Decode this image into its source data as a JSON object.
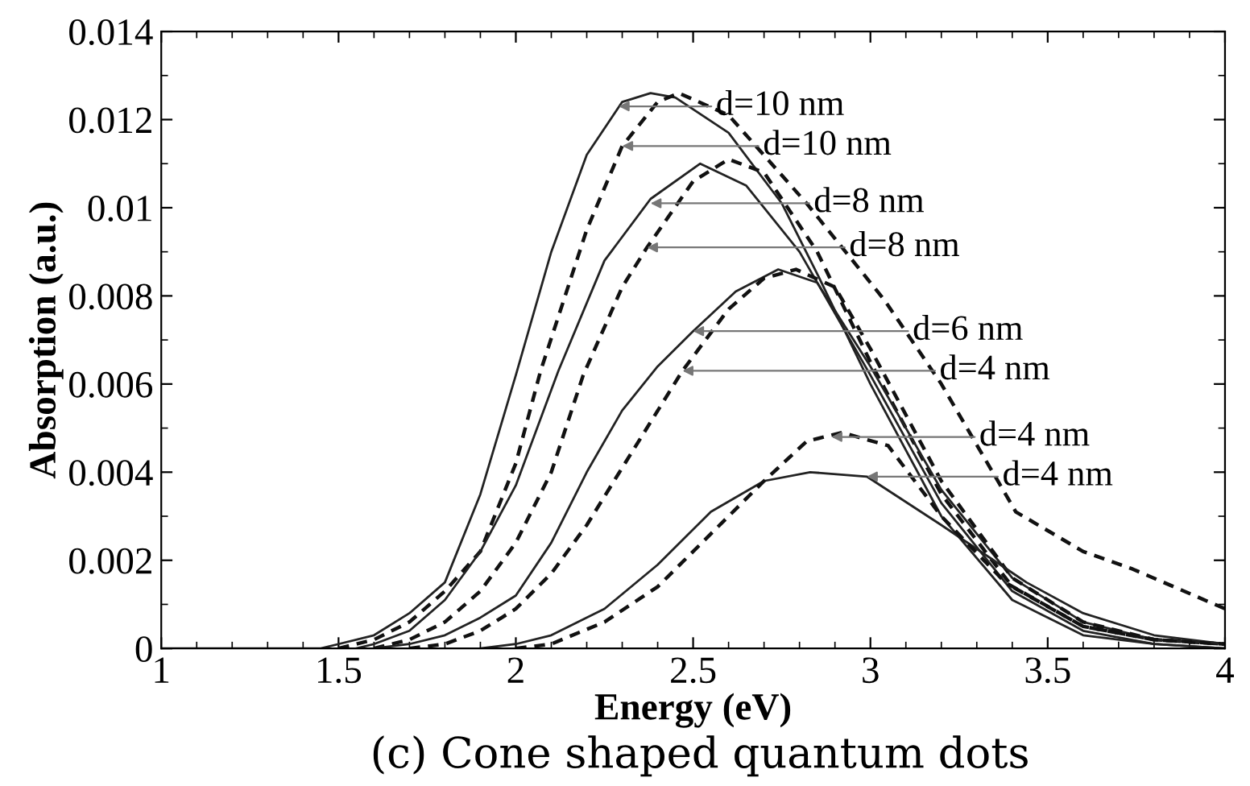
{
  "chart_data": {
    "type": "line",
    "title": "(c) Cone shaped quantum dots",
    "xlabel": "Energy (eV)",
    "ylabel": "Absorption (a.u.)",
    "xlim": [
      1,
      4
    ],
    "ylim": [
      0,
      0.014
    ],
    "xticks": [
      1,
      1.5,
      2,
      2.5,
      3,
      3.5,
      4
    ],
    "yticks": [
      0,
      0.002,
      0.004,
      0.006,
      0.008,
      0.01,
      0.012,
      0.014
    ],
    "grid": false,
    "legend": false,
    "marker": "none",
    "series": [
      {
        "color": "#222222",
        "line_style": "solid",
        "x": [
          1,
          1.45,
          1.5,
          1.6,
          1.7,
          1.8,
          1.9,
          2.0,
          2.1,
          2.2,
          2.3,
          2.38,
          2.45,
          2.6,
          2.75,
          2.85,
          3.0,
          3.2,
          3.4,
          3.6,
          3.8,
          4.0
        ],
        "values": [
          0,
          0,
          0.0001,
          0.0003,
          0.0008,
          0.0015,
          0.0035,
          0.0062,
          0.009,
          0.0112,
          0.0124,
          0.0126,
          0.0125,
          0.0117,
          0.0101,
          0.0085,
          0.006,
          0.003,
          0.0011,
          0.0003,
          0.0001,
          0
        ]
      },
      {
        "color": "#111111",
        "line_style": "dashed",
        "x": [
          1.5,
          1.6,
          1.7,
          1.8,
          1.9,
          2.0,
          2.07,
          2.2,
          2.3,
          2.4,
          2.46,
          2.6,
          2.82,
          3.04,
          3.2,
          3.41,
          3.6,
          3.74,
          4.0
        ],
        "values": [
          0,
          0.0002,
          0.0006,
          0.0013,
          0.0022,
          0.0042,
          0.0063,
          0.0095,
          0.0114,
          0.0124,
          0.0126,
          0.0121,
          0.0101,
          0.0079,
          0.006,
          0.0031,
          0.0022,
          0.0018,
          0.0009
        ]
      },
      {
        "color": "#222222",
        "line_style": "solid",
        "x": [
          1.55,
          1.6,
          1.7,
          1.8,
          1.9,
          2.0,
          2.12,
          2.25,
          2.38,
          2.52,
          2.65,
          2.8,
          3.0,
          3.2,
          3.4,
          3.6,
          3.8,
          4.0
        ],
        "values": [
          0,
          0.0001,
          0.0004,
          0.0011,
          0.0022,
          0.0037,
          0.0063,
          0.0088,
          0.0102,
          0.011,
          0.0105,
          0.009,
          0.0062,
          0.0033,
          0.0013,
          0.0004,
          0.0001,
          0
        ]
      },
      {
        "color": "#111111",
        "line_style": "dashed",
        "x": [
          1.6,
          1.7,
          1.8,
          1.9,
          2.0,
          2.1,
          2.19,
          2.3,
          2.37,
          2.5,
          2.6,
          2.7,
          2.85,
          3.0,
          3.2,
          3.4,
          3.6,
          3.8,
          4.0
        ],
        "values": [
          0,
          0.0002,
          0.0006,
          0.0013,
          0.0024,
          0.004,
          0.0062,
          0.0082,
          0.0091,
          0.0106,
          0.0111,
          0.0108,
          0.009,
          0.0065,
          0.0035,
          0.0014,
          0.0005,
          0.0002,
          0.0001
        ]
      },
      {
        "color": "#222222",
        "line_style": "solid",
        "x": [
          1.6,
          1.7,
          1.8,
          1.9,
          2.0,
          2.1,
          2.2,
          2.3,
          2.4,
          2.5,
          2.62,
          2.74,
          2.85,
          3.0,
          3.2,
          3.4,
          3.6,
          3.8,
          4.0
        ],
        "values": [
          0,
          0.0001,
          0.0003,
          0.0007,
          0.0012,
          0.0024,
          0.004,
          0.0054,
          0.0064,
          0.0072,
          0.0081,
          0.0086,
          0.0083,
          0.0064,
          0.0036,
          0.0016,
          0.0006,
          0.0002,
          0.0001
        ]
      },
      {
        "color": "#111111",
        "line_style": "dashed",
        "x": [
          1.7,
          1.8,
          1.9,
          2.0,
          2.1,
          2.2,
          2.3,
          2.47,
          2.6,
          2.7,
          2.79,
          2.9,
          3.0,
          3.2,
          3.4,
          3.6,
          3.8,
          4.0
        ],
        "values": [
          0,
          0.0001,
          0.0004,
          0.0009,
          0.0017,
          0.0028,
          0.0041,
          0.0063,
          0.0077,
          0.0084,
          0.0086,
          0.0082,
          0.0068,
          0.0038,
          0.0016,
          0.0006,
          0.0002,
          0.0001
        ]
      },
      {
        "color": "#222222",
        "line_style": "solid",
        "x": [
          1.9,
          2.0,
          2.1,
          2.25,
          2.4,
          2.55,
          2.7,
          2.83,
          2.99,
          3.2,
          3.44,
          3.6,
          3.8,
          4.0
        ],
        "values": [
          0,
          0.0001,
          0.0003,
          0.0009,
          0.0019,
          0.0031,
          0.0038,
          0.004,
          0.0039,
          0.0028,
          0.0015,
          0.0008,
          0.0003,
          0.0001
        ]
      },
      {
        "color": "#111111",
        "line_style": "dashed",
        "x": [
          2.0,
          2.1,
          2.25,
          2.4,
          2.55,
          2.7,
          2.82,
          2.92,
          3.05,
          3.2,
          3.38,
          3.6,
          3.8,
          4.0
        ],
        "values": [
          0,
          0.0001,
          0.0006,
          0.0014,
          0.0026,
          0.0038,
          0.0047,
          0.0049,
          0.0046,
          0.003,
          0.0015,
          0.0005,
          0.0002,
          0.0001
        ]
      }
    ],
    "annotations": [
      {
        "text": "d=10 nm",
        "x": 2.29,
        "y": 0.0123
      },
      {
        "text": "d=10 nm",
        "x": 2.3,
        "y": 0.0114
      },
      {
        "text": "d=8 nm",
        "x": 2.38,
        "y": 0.0101
      },
      {
        "text": "d=8 nm",
        "x": 2.37,
        "y": 0.0091
      },
      {
        "text": "d=6 nm",
        "x": 2.5,
        "y": 0.0072
      },
      {
        "text": "d=4 nm",
        "x": 2.47,
        "y": 0.0063
      },
      {
        "text": "d=4 nm",
        "x": 2.89,
        "y": 0.0048
      },
      {
        "text": "d=4 nm",
        "x": 2.99,
        "y": 0.0039
      }
    ]
  }
}
